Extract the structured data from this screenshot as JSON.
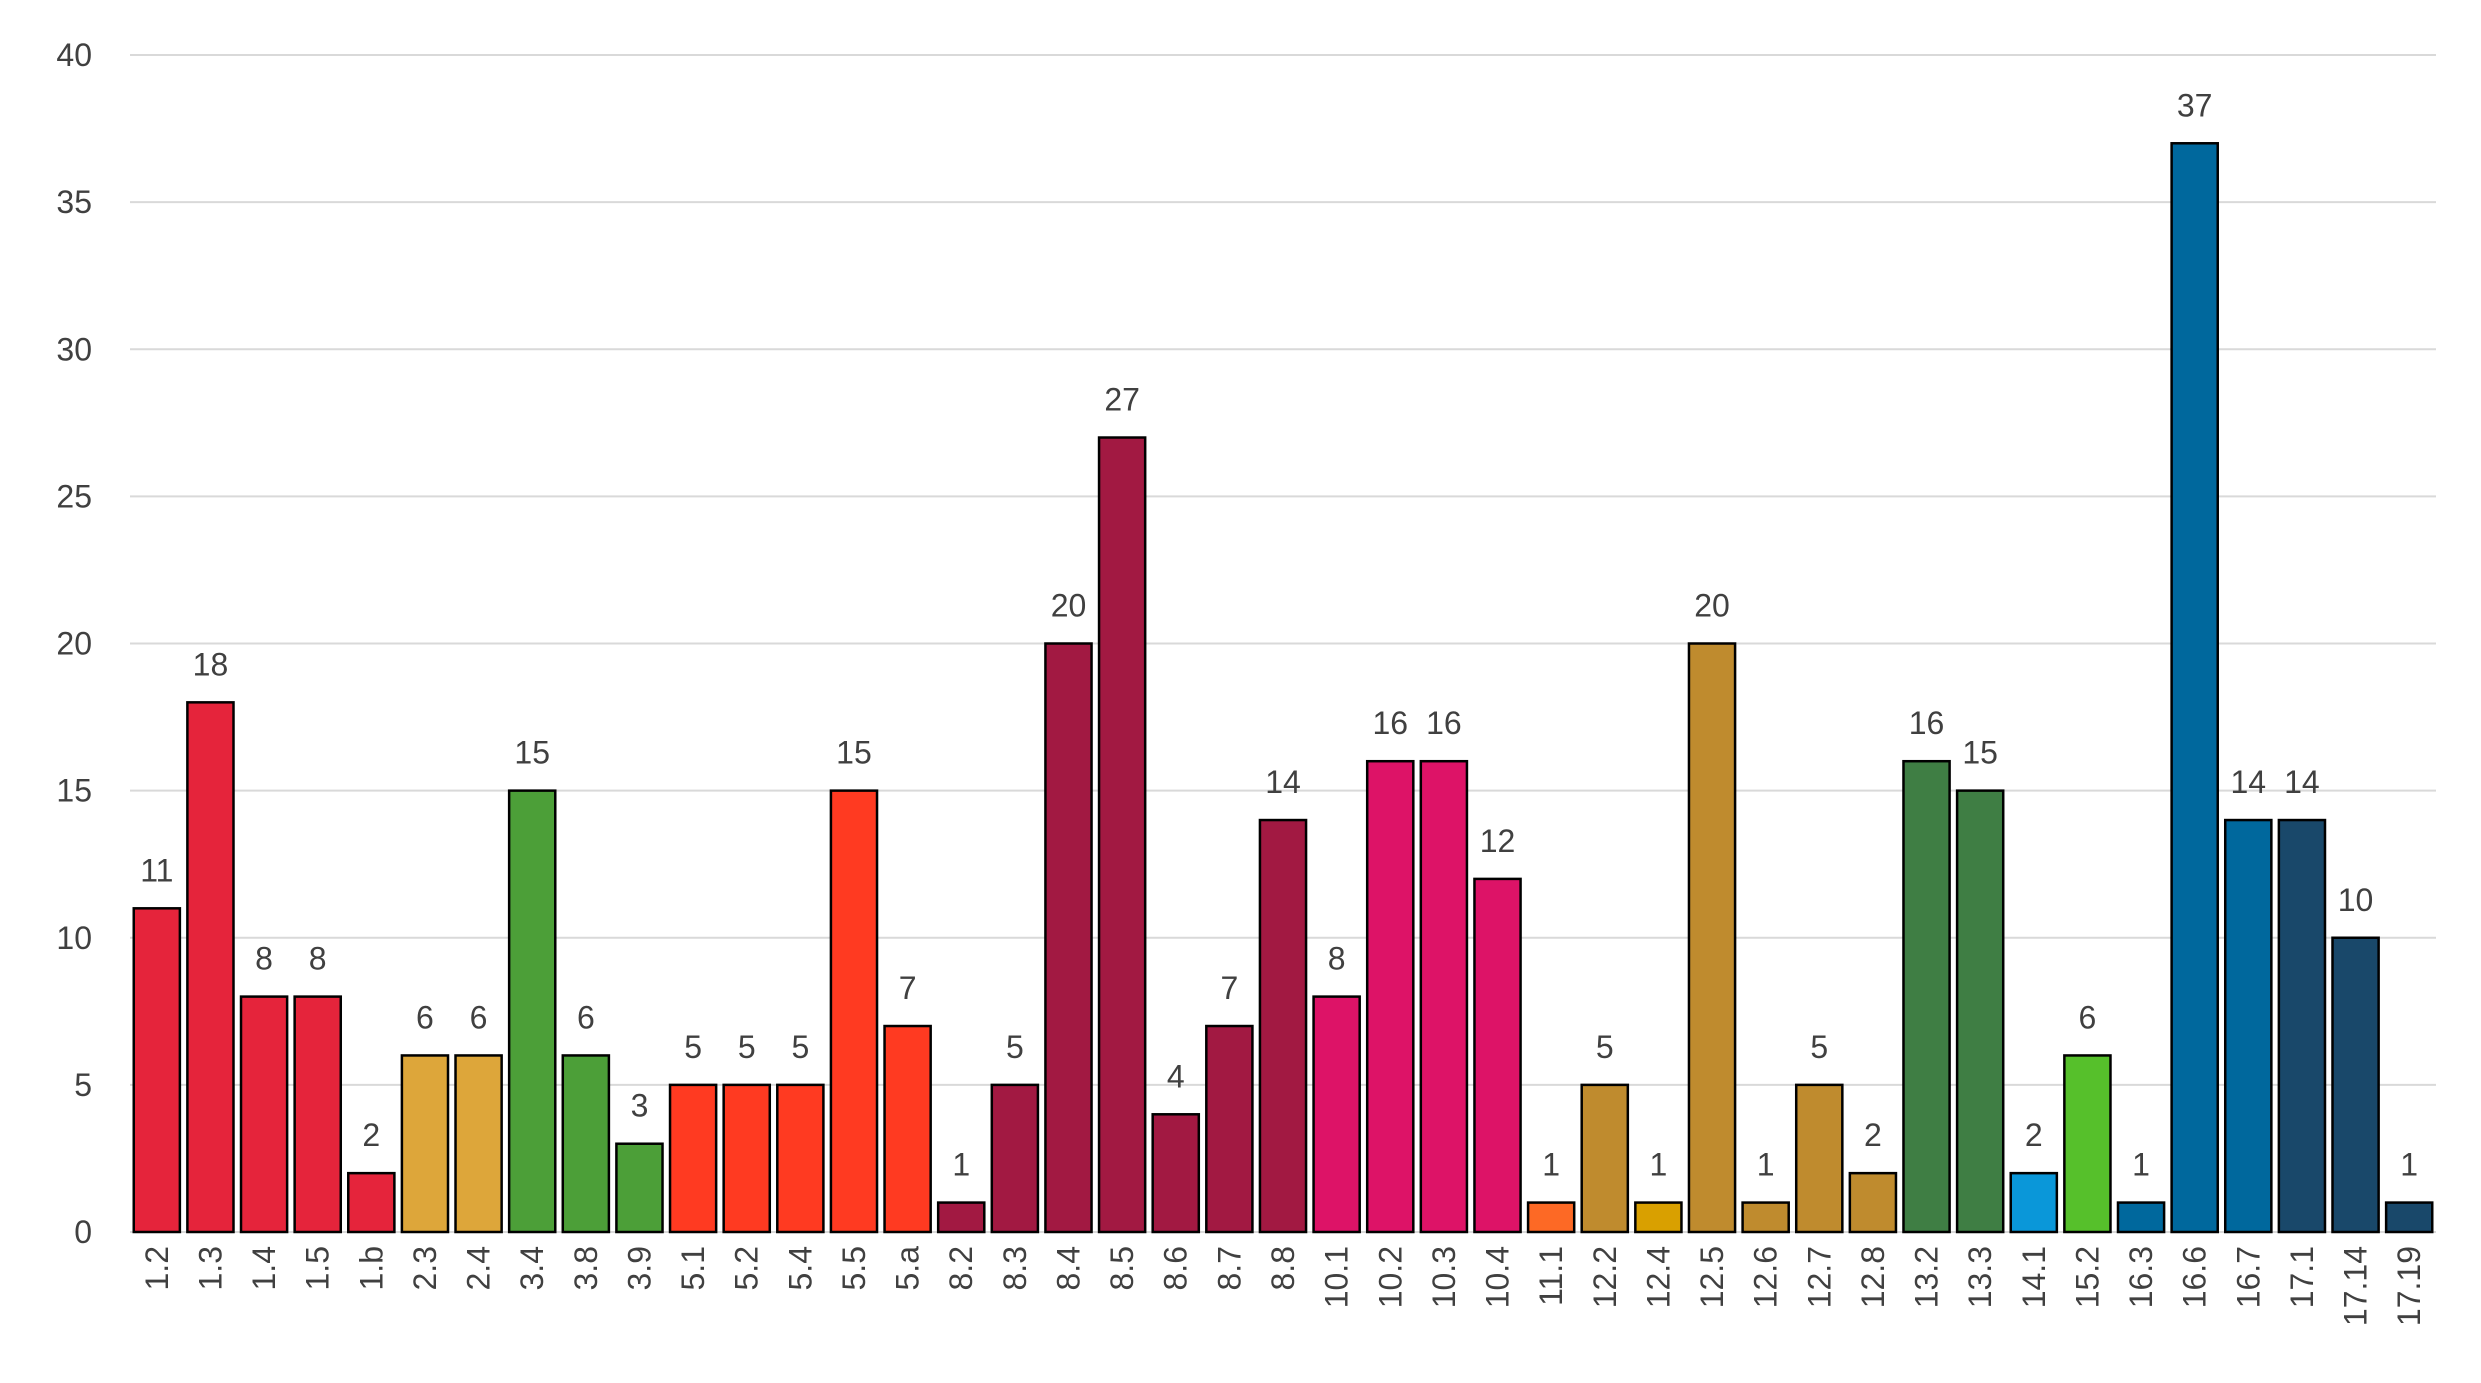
{
  "chart_data": {
    "type": "bar",
    "title": "",
    "xlabel": "",
    "ylabel": "",
    "ylim": [
      0,
      40
    ],
    "yticks": [
      0,
      5,
      10,
      15,
      20,
      25,
      30,
      35,
      40
    ],
    "grid": true,
    "legend": "none",
    "categories": [
      "1.2",
      "1.3",
      "1.4",
      "1.5",
      "1.b",
      "2.3",
      "2.4",
      "3.4",
      "3.8",
      "3.9",
      "5.1",
      "5.2",
      "5.4",
      "5.5",
      "5.a",
      "8.2",
      "8.3",
      "8.4",
      "8.5",
      "8.6",
      "8.7",
      "8.8",
      "10.1",
      "10.2",
      "10.3",
      "10.4",
      "11.1",
      "12.2",
      "12.4",
      "12.5",
      "12.6",
      "12.7",
      "12.8",
      "13.2",
      "13.3",
      "14.1",
      "15.2",
      "16.3",
      "16.6",
      "16.7",
      "17.1",
      "17.14",
      "17.19"
    ],
    "values": [
      11,
      18,
      8,
      8,
      2,
      6,
      6,
      15,
      6,
      3,
      5,
      5,
      5,
      15,
      7,
      1,
      5,
      20,
      27,
      4,
      7,
      14,
      8,
      16,
      16,
      12,
      1,
      5,
      1,
      20,
      1,
      5,
      2,
      16,
      15,
      2,
      6,
      1,
      37,
      14,
      14,
      10,
      1
    ],
    "colors": [
      "#E5243B",
      "#E5243B",
      "#E5243B",
      "#E5243B",
      "#E5243B",
      "#DDA63A",
      "#DDA63A",
      "#4C9F38",
      "#4C9F38",
      "#4C9F38",
      "#FF3A21",
      "#FF3A21",
      "#FF3A21",
      "#FF3A21",
      "#FF3A21",
      "#A21942",
      "#A21942",
      "#A21942",
      "#A21942",
      "#A21942",
      "#A21942",
      "#A21942",
      "#DD1367",
      "#DD1367",
      "#DD1367",
      "#DD1367",
      "#FD6925",
      "#BF8B2E",
      "#D9A000",
      "#BF8B2E",
      "#BF8B2E",
      "#BF8B2E",
      "#BF8B2E",
      "#3F7E44",
      "#3F7E44",
      "#0A97D9",
      "#56C02B",
      "#00689D",
      "#00689D",
      "#00689D",
      "#19486A",
      "#19486A",
      "#19486A"
    ]
  }
}
